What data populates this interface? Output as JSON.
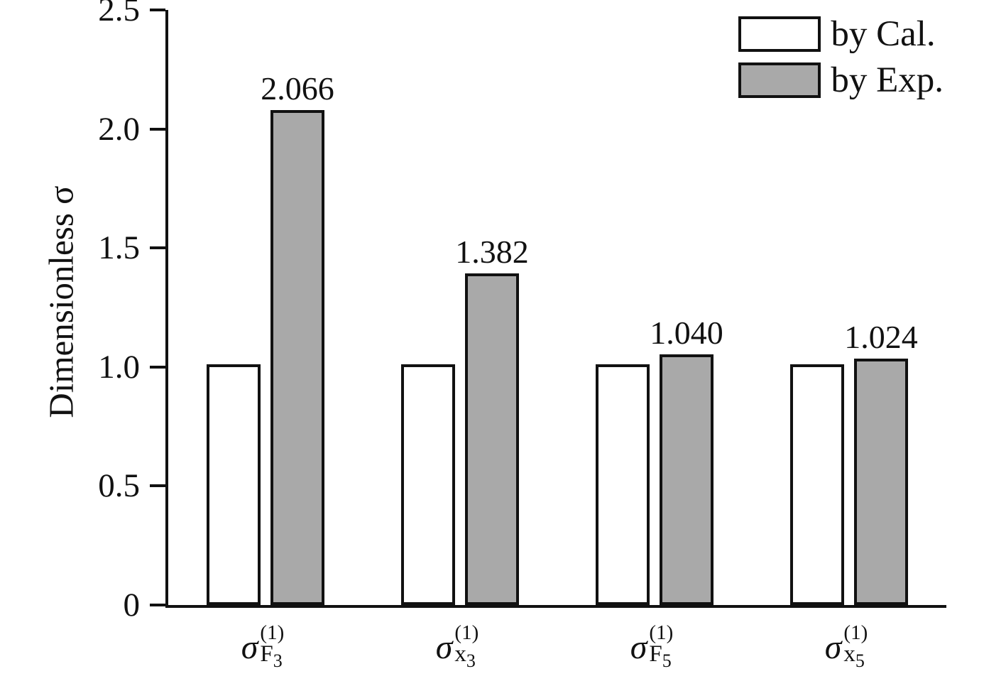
{
  "chart_data": {
    "type": "bar",
    "title": "",
    "xlabel": "",
    "ylabel": "Dimensionless σ",
    "ylim": [
      0,
      2.5
    ],
    "yticks": [
      0,
      0.5,
      1.0,
      1.5,
      2.0,
      2.5
    ],
    "ytick_labels": [
      "0",
      "0.5",
      "1.0",
      "1.5",
      "2.0",
      "2.5"
    ],
    "grid": false,
    "legend_position": "top-right",
    "categories": [
      {
        "base": "σ",
        "sup": "(1)",
        "sub": "F",
        "subsub": "3"
      },
      {
        "base": "σ",
        "sup": "(1)",
        "sub": "x",
        "subsub": "3"
      },
      {
        "base": "σ",
        "sup": "(1)",
        "sub": "F",
        "subsub": "5"
      },
      {
        "base": "σ",
        "sup": "(1)",
        "sub": "x",
        "subsub": "5"
      }
    ],
    "series": [
      {
        "name": "by Cal.",
        "color": "#ffffff",
        "values": [
          1.0,
          1.0,
          1.0,
          1.0
        ]
      },
      {
        "name": "by Exp.",
        "color": "#a9a9a9",
        "values": [
          2.066,
          1.382,
          1.04,
          1.024
        ]
      }
    ],
    "value_labels": [
      "2.066",
      "1.382",
      "1.040",
      "1.024"
    ]
  },
  "colors": {
    "axis": "#111111",
    "bar_border": "#111111",
    "cal_fill": "#ffffff",
    "exp_fill": "#a9a9a9"
  }
}
